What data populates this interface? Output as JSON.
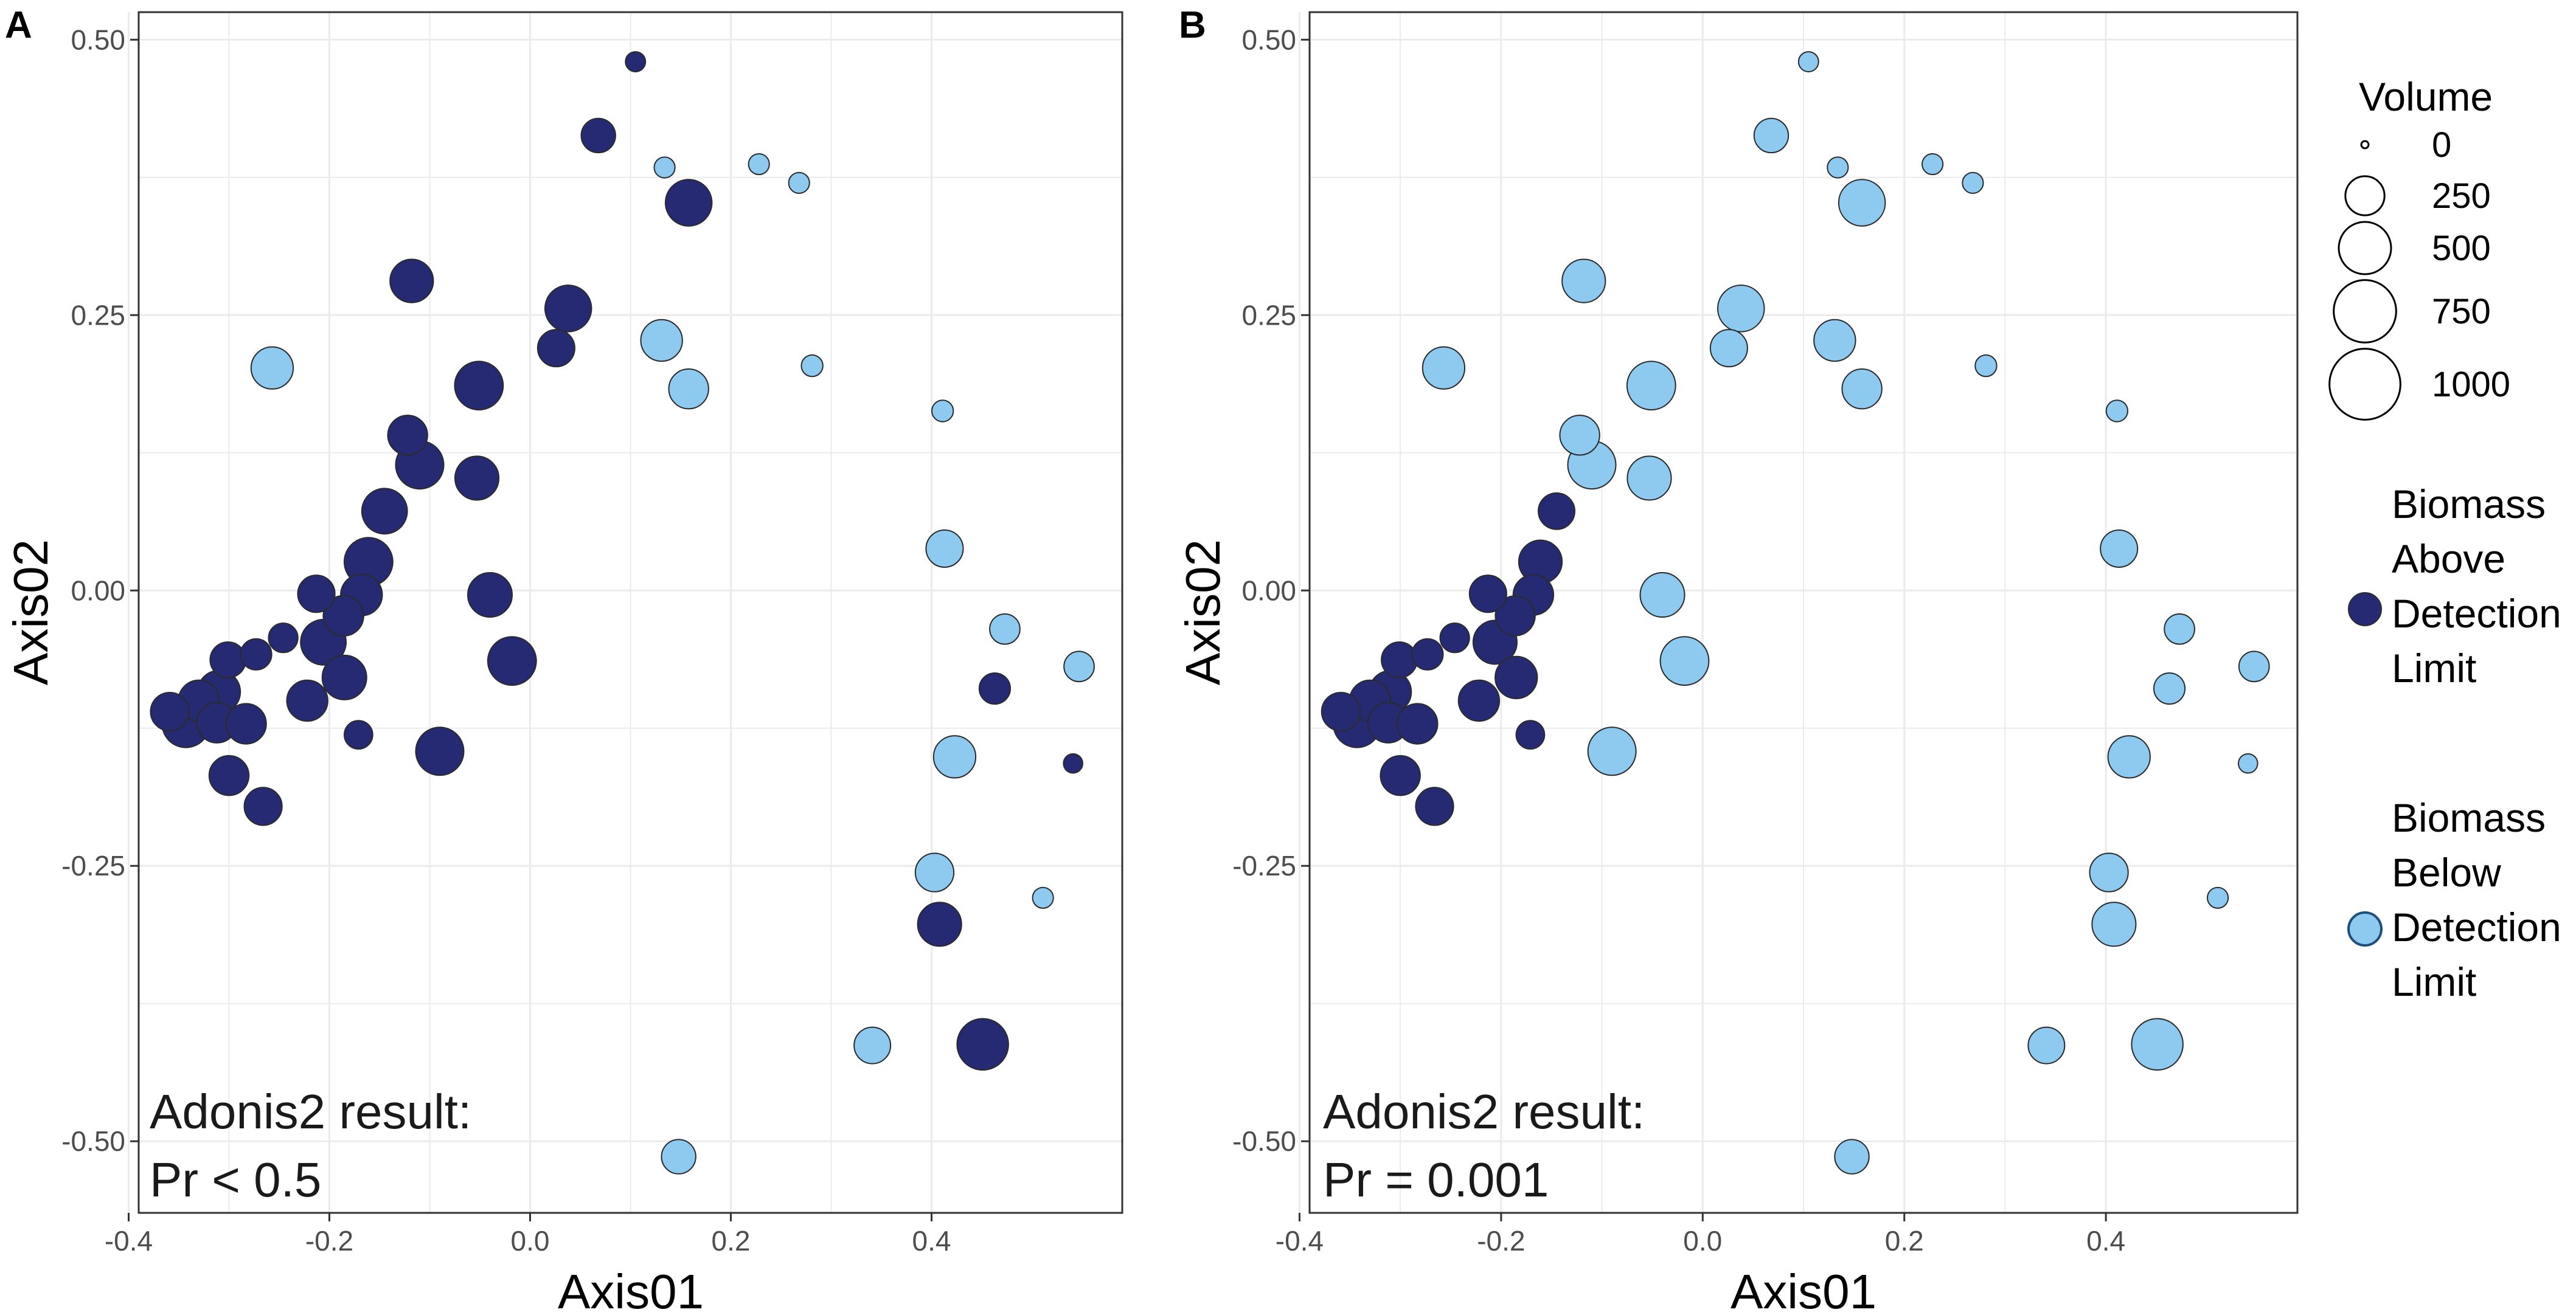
{
  "chart_data": [
    {
      "panel_label": "A",
      "type": "scatter",
      "xlabel": "Axis01",
      "ylabel": "Axis02",
      "xlim": [
        -0.39,
        0.59
      ],
      "ylim": [
        -0.565,
        0.525
      ],
      "x_ticks": [
        -0.4,
        -0.2,
        0.0,
        0.2,
        0.4
      ],
      "x_tick_labels": [
        "-0.4",
        "-0.2",
        "0.0",
        "0.2",
        "0.4"
      ],
      "y_ticks": [
        -0.5,
        -0.25,
        0.0,
        0.25,
        0.5
      ],
      "y_tick_labels": [
        "-0.50",
        "-0.25",
        "0.00",
        "0.25",
        "0.50"
      ],
      "grid": true,
      "annotation_lines": [
        "Adonis2 result:",
        "Pr < 0.5"
      ],
      "points": [
        {
          "x": 0.105,
          "y": 0.48,
          "volume": 40,
          "group": "Above"
        },
        {
          "x": 0.068,
          "y": 0.413,
          "volume": 180,
          "group": "Above"
        },
        {
          "x": 0.134,
          "y": 0.384,
          "volume": 45,
          "group": "Below"
        },
        {
          "x": 0.228,
          "y": 0.387,
          "volume": 45,
          "group": "Below"
        },
        {
          "x": 0.268,
          "y": 0.37,
          "volume": 45,
          "group": "Below"
        },
        {
          "x": 0.158,
          "y": 0.352,
          "volume": 380,
          "group": "Above"
        },
        {
          "x": -0.118,
          "y": 0.281,
          "volume": 320,
          "group": "Above"
        },
        {
          "x": 0.038,
          "y": 0.256,
          "volume": 380,
          "group": "Above"
        },
        {
          "x": 0.026,
          "y": 0.22,
          "volume": 220,
          "group": "Above"
        },
        {
          "x": 0.131,
          "y": 0.227,
          "volume": 290,
          "group": "Below"
        },
        {
          "x": 0.158,
          "y": 0.183,
          "volume": 260,
          "group": "Below"
        },
        {
          "x": 0.281,
          "y": 0.204,
          "volume": 50,
          "group": "Below"
        },
        {
          "x": -0.257,
          "y": 0.202,
          "volume": 300,
          "group": "Below"
        },
        {
          "x": 0.411,
          "y": 0.163,
          "volume": 50,
          "group": "Below"
        },
        {
          "x": -0.051,
          "y": 0.186,
          "volume": 420,
          "group": "Above"
        },
        {
          "x": -0.122,
          "y": 0.141,
          "volume": 260,
          "group": "Above"
        },
        {
          "x": -0.11,
          "y": 0.114,
          "volume": 410,
          "group": "Above"
        },
        {
          "x": -0.053,
          "y": 0.102,
          "volume": 330,
          "group": "Above"
        },
        {
          "x": -0.145,
          "y": 0.072,
          "volume": 360,
          "group": "Above"
        },
        {
          "x": 0.413,
          "y": 0.038,
          "volume": 220,
          "group": "Below"
        },
        {
          "x": -0.161,
          "y": 0.026,
          "volume": 420,
          "group": "Above"
        },
        {
          "x": -0.213,
          "y": -0.003,
          "volume": 220,
          "group": "Above"
        },
        {
          "x": -0.04,
          "y": -0.004,
          "volume": 340,
          "group": "Above"
        },
        {
          "x": -0.168,
          "y": -0.004,
          "volume": 290,
          "group": "Above"
        },
        {
          "x": -0.186,
          "y": -0.023,
          "volume": 270,
          "group": "Above"
        },
        {
          "x": 0.473,
          "y": -0.035,
          "volume": 130,
          "group": "Below"
        },
        {
          "x": -0.206,
          "y": -0.047,
          "volume": 360,
          "group": "Above"
        },
        {
          "x": -0.246,
          "y": -0.043,
          "volume": 120,
          "group": "Above"
        },
        {
          "x": -0.273,
          "y": -0.058,
          "volume": 140,
          "group": "Above"
        },
        {
          "x": -0.301,
          "y": -0.063,
          "volume": 200,
          "group": "Above"
        },
        {
          "x": 0.547,
          "y": -0.069,
          "volume": 130,
          "group": "Below"
        },
        {
          "x": -0.018,
          "y": -0.064,
          "volume": 420,
          "group": "Above"
        },
        {
          "x": -0.185,
          "y": -0.079,
          "volume": 340,
          "group": "Above"
        },
        {
          "x": -0.31,
          "y": -0.092,
          "volume": 310,
          "group": "Above"
        },
        {
          "x": 0.463,
          "y": -0.089,
          "volume": 140,
          "group": "Above"
        },
        {
          "x": -0.222,
          "y": -0.1,
          "volume": 280,
          "group": "Above"
        },
        {
          "x": -0.33,
          "y": -0.1,
          "volume": 280,
          "group": "Above"
        },
        {
          "x": -0.359,
          "y": -0.11,
          "volume": 240,
          "group": "Above"
        },
        {
          "x": -0.312,
          "y": -0.12,
          "volume": 270,
          "group": "Above"
        },
        {
          "x": -0.343,
          "y": -0.121,
          "volume": 400,
          "group": "Above"
        },
        {
          "x": -0.283,
          "y": -0.121,
          "volume": 270,
          "group": "Above"
        },
        {
          "x": -0.171,
          "y": -0.131,
          "volume": 110,
          "group": "Above"
        },
        {
          "x": -0.09,
          "y": -0.146,
          "volume": 410,
          "group": "Above"
        },
        {
          "x": 0.423,
          "y": -0.151,
          "volume": 300,
          "group": "Below"
        },
        {
          "x": 0.541,
          "y": -0.157,
          "volume": 35,
          "group": "Above"
        },
        {
          "x": -0.3,
          "y": -0.168,
          "volume": 260,
          "group": "Above"
        },
        {
          "x": -0.266,
          "y": -0.196,
          "volume": 230,
          "group": "Above"
        },
        {
          "x": 0.403,
          "y": -0.256,
          "volume": 240,
          "group": "Below"
        },
        {
          "x": 0.511,
          "y": -0.279,
          "volume": 45,
          "group": "Below"
        },
        {
          "x": 0.408,
          "y": -0.303,
          "volume": 330,
          "group": "Above"
        },
        {
          "x": 0.341,
          "y": -0.413,
          "volume": 210,
          "group": "Below"
        },
        {
          "x": 0.451,
          "y": -0.412,
          "volume": 480,
          "group": "Above"
        },
        {
          "x": 0.148,
          "y": -0.514,
          "volume": 180,
          "group": "Below"
        }
      ]
    },
    {
      "panel_label": "B",
      "type": "scatter",
      "xlabel": "Axis01",
      "ylabel": "Axis02",
      "xlim": [
        -0.39,
        0.59
      ],
      "ylim": [
        -0.565,
        0.525
      ],
      "x_ticks": [
        -0.4,
        -0.2,
        0.0,
        0.2,
        0.4
      ],
      "x_tick_labels": [
        "-0.4",
        "-0.2",
        "0.0",
        "0.2",
        "0.4"
      ],
      "y_ticks": [
        -0.5,
        -0.25,
        0.0,
        0.25,
        0.5
      ],
      "y_tick_labels": [
        "-0.50",
        "-0.25",
        "0.00",
        "0.25",
        "0.50"
      ],
      "grid": true,
      "annotation_lines": [
        "Adonis2 result:",
        "Pr = 0.001"
      ],
      "points": [
        {
          "x": 0.105,
          "y": 0.48,
          "volume": 40,
          "group": "Below"
        },
        {
          "x": 0.068,
          "y": 0.413,
          "volume": 180,
          "group": "Below"
        },
        {
          "x": 0.134,
          "y": 0.384,
          "volume": 45,
          "group": "Below"
        },
        {
          "x": 0.228,
          "y": 0.387,
          "volume": 45,
          "group": "Below"
        },
        {
          "x": 0.268,
          "y": 0.37,
          "volume": 45,
          "group": "Below"
        },
        {
          "x": 0.158,
          "y": 0.352,
          "volume": 380,
          "group": "Below"
        },
        {
          "x": -0.118,
          "y": 0.281,
          "volume": 320,
          "group": "Below"
        },
        {
          "x": 0.038,
          "y": 0.256,
          "volume": 380,
          "group": "Below"
        },
        {
          "x": 0.026,
          "y": 0.22,
          "volume": 220,
          "group": "Below"
        },
        {
          "x": 0.131,
          "y": 0.227,
          "volume": 290,
          "group": "Below"
        },
        {
          "x": 0.158,
          "y": 0.183,
          "volume": 260,
          "group": "Below"
        },
        {
          "x": 0.281,
          "y": 0.204,
          "volume": 50,
          "group": "Below"
        },
        {
          "x": -0.257,
          "y": 0.202,
          "volume": 300,
          "group": "Below"
        },
        {
          "x": 0.411,
          "y": 0.163,
          "volume": 50,
          "group": "Below"
        },
        {
          "x": -0.051,
          "y": 0.186,
          "volume": 420,
          "group": "Below"
        },
        {
          "x": -0.122,
          "y": 0.141,
          "volume": 260,
          "group": "Below"
        },
        {
          "x": -0.11,
          "y": 0.114,
          "volume": 410,
          "group": "Below"
        },
        {
          "x": -0.053,
          "y": 0.102,
          "volume": 330,
          "group": "Below"
        },
        {
          "x": -0.145,
          "y": 0.072,
          "volume": 210,
          "group": "Above"
        },
        {
          "x": 0.413,
          "y": 0.038,
          "volume": 220,
          "group": "Below"
        },
        {
          "x": -0.161,
          "y": 0.026,
          "volume": 320,
          "group": "Above"
        },
        {
          "x": -0.213,
          "y": -0.003,
          "volume": 220,
          "group": "Above"
        },
        {
          "x": -0.04,
          "y": -0.004,
          "volume": 340,
          "group": "Below"
        },
        {
          "x": -0.168,
          "y": -0.004,
          "volume": 270,
          "group": "Above"
        },
        {
          "x": -0.186,
          "y": -0.023,
          "volume": 260,
          "group": "Above"
        },
        {
          "x": 0.473,
          "y": -0.035,
          "volume": 130,
          "group": "Below"
        },
        {
          "x": -0.206,
          "y": -0.047,
          "volume": 330,
          "group": "Above"
        },
        {
          "x": -0.246,
          "y": -0.043,
          "volume": 120,
          "group": "Above"
        },
        {
          "x": -0.273,
          "y": -0.058,
          "volume": 140,
          "group": "Above"
        },
        {
          "x": -0.301,
          "y": -0.063,
          "volume": 200,
          "group": "Above"
        },
        {
          "x": 0.547,
          "y": -0.069,
          "volume": 130,
          "group": "Below"
        },
        {
          "x": -0.018,
          "y": -0.064,
          "volume": 420,
          "group": "Below"
        },
        {
          "x": -0.185,
          "y": -0.079,
          "volume": 300,
          "group": "Above"
        },
        {
          "x": -0.31,
          "y": -0.092,
          "volume": 300,
          "group": "Above"
        },
        {
          "x": 0.463,
          "y": -0.089,
          "volume": 140,
          "group": "Below"
        },
        {
          "x": -0.222,
          "y": -0.1,
          "volume": 280,
          "group": "Above"
        },
        {
          "x": -0.33,
          "y": -0.1,
          "volume": 280,
          "group": "Above"
        },
        {
          "x": -0.359,
          "y": -0.11,
          "volume": 240,
          "group": "Above"
        },
        {
          "x": -0.312,
          "y": -0.12,
          "volume": 270,
          "group": "Above"
        },
        {
          "x": -0.343,
          "y": -0.121,
          "volume": 400,
          "group": "Above"
        },
        {
          "x": -0.283,
          "y": -0.121,
          "volume": 270,
          "group": "Above"
        },
        {
          "x": -0.171,
          "y": -0.131,
          "volume": 110,
          "group": "Above"
        },
        {
          "x": -0.09,
          "y": -0.146,
          "volume": 410,
          "group": "Below"
        },
        {
          "x": 0.423,
          "y": -0.151,
          "volume": 300,
          "group": "Below"
        },
        {
          "x": 0.541,
          "y": -0.157,
          "volume": 35,
          "group": "Below"
        },
        {
          "x": -0.3,
          "y": -0.168,
          "volume": 260,
          "group": "Above"
        },
        {
          "x": -0.266,
          "y": -0.196,
          "volume": 230,
          "group": "Above"
        },
        {
          "x": 0.403,
          "y": -0.256,
          "volume": 240,
          "group": "Below"
        },
        {
          "x": 0.511,
          "y": -0.279,
          "volume": 45,
          "group": "Below"
        },
        {
          "x": 0.408,
          "y": -0.303,
          "volume": 330,
          "group": "Below"
        },
        {
          "x": 0.341,
          "y": -0.413,
          "volume": 210,
          "group": "Below"
        },
        {
          "x": 0.451,
          "y": -0.412,
          "volume": 480,
          "group": "Below"
        },
        {
          "x": 0.148,
          "y": -0.514,
          "volume": 180,
          "group": "Below"
        }
      ]
    }
  ],
  "legend": {
    "size_title": "Volume",
    "size_values": [
      0,
      250,
      500,
      750,
      1000
    ],
    "size_labels": [
      "0",
      "250",
      "500",
      "750",
      "1000"
    ],
    "groups": [
      {
        "key": "Above",
        "label_lines": [
          "Biomass",
          "Above",
          "Detection",
          "Limit"
        ],
        "color": "#252a72"
      },
      {
        "key": "Below",
        "label_lines": [
          "Biomass",
          "Below",
          "Detection",
          "Limit"
        ],
        "color": "#8ecaf0"
      }
    ]
  },
  "colors": {
    "above": "#252a72",
    "below": "#8ecaf0",
    "point_stroke": "#2b2b2b",
    "grid": "#ebebeb",
    "frame": "#333333",
    "legend_below_stroke": "#1f4e79"
  }
}
